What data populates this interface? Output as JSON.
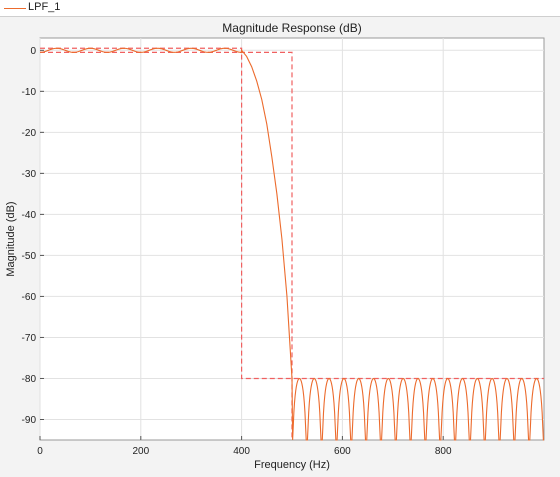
{
  "legend": {
    "label": "LPF_1",
    "color": "#ec6b2d"
  },
  "chart_data": {
    "type": "line",
    "title": "Magnitude Response (dB)",
    "xlabel": "Frequency (Hz)",
    "ylabel": "Magnitude (dB)",
    "xlim": [
      0,
      1000
    ],
    "ylim": [
      -95,
      3
    ],
    "xticks": [
      0,
      200,
      400,
      600,
      800
    ],
    "yticks": [
      0,
      -10,
      -20,
      -30,
      -40,
      -50,
      -60,
      -70,
      -80,
      -90
    ],
    "grid": true,
    "series": [
      {
        "name": "LPF_1",
        "color": "#ec6b2d",
        "passband": {
          "f_end": 400,
          "ripple_db": 0.5,
          "ripple_cycles": 6
        },
        "transition": [
          [
            400,
            0
          ],
          [
            410,
            -1.5
          ],
          [
            420,
            -4
          ],
          [
            430,
            -7.5
          ],
          [
            440,
            -12
          ],
          [
            450,
            -18
          ],
          [
            460,
            -26
          ],
          [
            470,
            -35
          ],
          [
            480,
            -46
          ],
          [
            490,
            -60
          ],
          [
            495,
            -70
          ],
          [
            500,
            -80
          ]
        ],
        "stopband": {
          "f_start": 500,
          "f_end": 1000,
          "peak_db": -80,
          "lobes": 17
        }
      }
    ],
    "mask": {
      "color": "#f06060",
      "style": "dashed",
      "segments": [
        [
          [
            0,
            0.5
          ],
          [
            400,
            0.5
          ],
          [
            400,
            -80
          ],
          [
            1000,
            -80
          ]
        ],
        [
          [
            0,
            -0.5
          ],
          [
            500,
            -0.5
          ],
          [
            500,
            -95
          ]
        ]
      ]
    }
  }
}
